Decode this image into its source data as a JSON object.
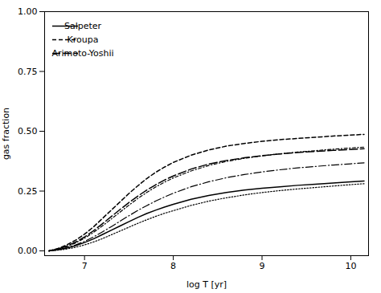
{
  "chart_data": {
    "type": "line",
    "xlabel": "log T [yr]",
    "ylabel": "gas fraction",
    "xlim": [
      6.55,
      10.2
    ],
    "ylim": [
      -0.02,
      1.0
    ],
    "xticks": [
      7,
      8,
      9,
      10
    ],
    "yticks": [
      {
        "value": 0,
        "label": "0.00"
      },
      {
        "value": 0.25,
        "label": "0.25"
      },
      {
        "value": 0.5,
        "label": "0.50"
      },
      {
        "value": 0.75,
        "label": "0.75"
      },
      {
        "value": 1,
        "label": "1.00"
      }
    ],
    "legend": "upper left",
    "x": [
      6.6,
      6.7,
      6.8,
      6.9,
      7.0,
      7.1,
      7.2,
      7.3,
      7.4,
      7.5,
      7.6,
      7.7,
      7.8,
      7.9,
      8.0,
      8.2,
      8.4,
      8.6,
      8.8,
      9.0,
      9.2,
      9.4,
      9.6,
      9.8,
      10.0,
      10.15
    ],
    "series": [
      {
        "name": "Salpeter",
        "color": "#000000",
        "line_style": "solid",
        "values": [
          0.0,
          0.005,
          0.012,
          0.022,
          0.035,
          0.05,
          0.068,
          0.086,
          0.104,
          0.122,
          0.14,
          0.156,
          0.17,
          0.183,
          0.195,
          0.216,
          0.232,
          0.244,
          0.254,
          0.262,
          0.268,
          0.274,
          0.279,
          0.284,
          0.289,
          0.292
        ]
      },
      {
        "color": "#000000",
        "line_style": "dotted",
        "values": [
          0.0,
          0.003,
          0.008,
          0.015,
          0.025,
          0.037,
          0.051,
          0.067,
          0.083,
          0.099,
          0.115,
          0.13,
          0.144,
          0.157,
          0.168,
          0.19,
          0.208,
          0.222,
          0.234,
          0.244,
          0.252,
          0.259,
          0.265,
          0.271,
          0.277,
          0.281
        ]
      },
      {
        "name": "Kroupa",
        "color": "#000000",
        "line_style": "dashed",
        "values": [
          0.0,
          0.01,
          0.025,
          0.045,
          0.07,
          0.1,
          0.135,
          0.17,
          0.205,
          0.24,
          0.272,
          0.302,
          0.328,
          0.35,
          0.37,
          0.4,
          0.422,
          0.438,
          0.449,
          0.458,
          0.465,
          0.47,
          0.475,
          0.48,
          0.484,
          0.487
        ]
      },
      {
        "color": "#000000",
        "line_style": "dashdot",
        "values": [
          0.0,
          0.007,
          0.018,
          0.033,
          0.053,
          0.077,
          0.104,
          0.133,
          0.162,
          0.191,
          0.219,
          0.244,
          0.267,
          0.287,
          0.305,
          0.334,
          0.357,
          0.374,
          0.387,
          0.397,
          0.406,
          0.413,
          0.419,
          0.425,
          0.43,
          0.434
        ]
      },
      {
        "name": "Arimoto-Yoshii",
        "color": "#000000",
        "line_style": "longdash",
        "values": [
          0.0,
          0.008,
          0.02,
          0.037,
          0.058,
          0.084,
          0.113,
          0.143,
          0.173,
          0.202,
          0.229,
          0.254,
          0.276,
          0.296,
          0.313,
          0.342,
          0.363,
          0.378,
          0.389,
          0.398,
          0.405,
          0.411,
          0.416,
          0.42,
          0.424,
          0.427
        ]
      },
      {
        "color": "#000000",
        "line_style": "longdashdot",
        "values": [
          0.0,
          0.005,
          0.013,
          0.025,
          0.04,
          0.058,
          0.079,
          0.101,
          0.124,
          0.147,
          0.169,
          0.189,
          0.208,
          0.225,
          0.241,
          0.268,
          0.289,
          0.306,
          0.319,
          0.33,
          0.339,
          0.347,
          0.353,
          0.359,
          0.364,
          0.368
        ]
      }
    ]
  }
}
